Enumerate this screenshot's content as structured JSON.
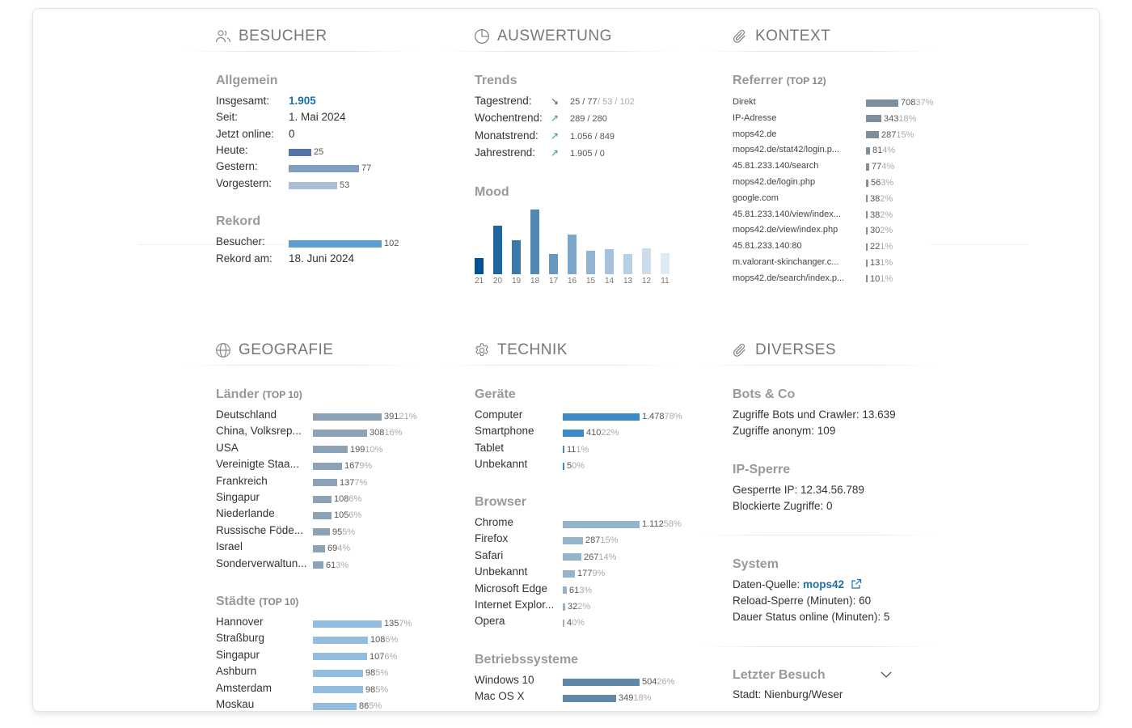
{
  "colors": {
    "accent": "#1e6fa8",
    "trend_up": "#2ea44f",
    "trend_down": "#555555",
    "bar_heute": "#5674a8",
    "bar_gestern": "#7f9fc0",
    "bar_vorgestern": "#a8bfd4",
    "bar_rekord": "#5b9fd4",
    "bar_referrer": "#7d8e9c",
    "bar_laender": "#8ca2b6",
    "bar_staedte": "#93bddf",
    "bar_geraete": "#3d8ac9",
    "bar_browser": "#93b4c9",
    "bar_os": "#5f88a8"
  },
  "besucher": {
    "title": "BESUCHER",
    "icon": "users-icon",
    "allgemein": {
      "title": "Allgemein",
      "insgesamt_label": "Insgesamt:",
      "insgesamt_value": "1.905",
      "seit_label": "Seit:",
      "seit_value": "1. Mai 2024",
      "online_label": "Jetzt online:",
      "online_value": "0",
      "heute_label": "Heute:",
      "heute_value": "25",
      "gestern_label": "Gestern:",
      "gestern_value": "77",
      "vorgestern_label": "Vorgestern:",
      "vorgestern_value": "53"
    },
    "rekord": {
      "title": "Rekord",
      "besucher_label": "Besucher:",
      "besucher_value": "102",
      "am_label": "Rekord am:",
      "am_value": "18. Juni 2024"
    }
  },
  "auswertung": {
    "title": "AUSWERTUNG",
    "icon": "pie-chart-icon",
    "trends": {
      "title": "Trends",
      "items": [
        {
          "label": "Tagestrend:",
          "direction": "down",
          "arrow": "↘",
          "main": "25 / 77",
          "extra": " / 53 / 102"
        },
        {
          "label": "Wochentrend:",
          "direction": "up",
          "arrow": "↗",
          "main": "289 / 280",
          "extra": ""
        },
        {
          "label": "Monatstrend:",
          "direction": "up",
          "arrow": "↗",
          "main": "1.056 / 849",
          "extra": ""
        },
        {
          "label": "Jahrestrend:",
          "direction": "up",
          "arrow": "↗",
          "main": "1.905 / 0",
          "extra": ""
        }
      ]
    },
    "mood": {
      "title": "Mood",
      "bars": [
        {
          "label": "21",
          "value": 25
        },
        {
          "label": "20",
          "value": 77
        },
        {
          "label": "19",
          "value": 53
        },
        {
          "label": "18",
          "value": 102
        },
        {
          "label": "17",
          "value": 32
        },
        {
          "label": "16",
          "value": 63
        },
        {
          "label": "15",
          "value": 37
        },
        {
          "label": "14",
          "value": 40
        },
        {
          "label": "13",
          "value": 32
        },
        {
          "label": "12",
          "value": 41
        },
        {
          "label": "11",
          "value": 33
        }
      ]
    }
  },
  "kontext": {
    "title": "KONTEXT",
    "icon": "paperclip-icon",
    "referrer": {
      "title": "Referrer",
      "top": "(TOP 12)",
      "items": [
        {
          "label": "Direkt",
          "count": "708",
          "pct": "37%",
          "value": 708
        },
        {
          "label": "IP-Adresse",
          "count": "343",
          "pct": "18%",
          "value": 343
        },
        {
          "label": "mops42.de",
          "count": "287",
          "pct": "15%",
          "value": 287
        },
        {
          "label": "mops42.de/stat42/login.p...",
          "count": "81",
          "pct": "4%",
          "value": 81
        },
        {
          "label": "45.81.233.140/search",
          "count": "77",
          "pct": "4%",
          "value": 77
        },
        {
          "label": "mops42.de/login.php",
          "count": "56",
          "pct": "3%",
          "value": 56
        },
        {
          "label": "google.com",
          "count": "38",
          "pct": "2%",
          "value": 38
        },
        {
          "label": "45.81.233.140/view/index...",
          "count": "38",
          "pct": "2%",
          "value": 38
        },
        {
          "label": "mops42.de/view/index.php",
          "count": "30",
          "pct": "2%",
          "value": 30
        },
        {
          "label": "45.81.233.140:80",
          "count": "22",
          "pct": "1%",
          "value": 22
        },
        {
          "label": "m.valorant-skinchanger.c...",
          "count": "13",
          "pct": "1%",
          "value": 13
        },
        {
          "label": "mops42.de/search/index.p...",
          "count": "10",
          "pct": "1%",
          "value": 10
        }
      ]
    }
  },
  "geografie": {
    "title": "GEOGRAFIE",
    "icon": "globe-icon",
    "laender": {
      "title": "Länder",
      "top": "(TOP 10)",
      "items": [
        {
          "label": "Deutschland",
          "count": "391",
          "pct": "21%",
          "value": 391
        },
        {
          "label": "China, Volksrep...",
          "count": "308",
          "pct": "16%",
          "value": 308
        },
        {
          "label": "USA",
          "count": "199",
          "pct": "10%",
          "value": 199
        },
        {
          "label": "Vereinigte Staa...",
          "count": "167",
          "pct": "9%",
          "value": 167
        },
        {
          "label": "Frankreich",
          "count": "137",
          "pct": "7%",
          "value": 137
        },
        {
          "label": "Singapur",
          "count": "108",
          "pct": "6%",
          "value": 108
        },
        {
          "label": "Niederlande",
          "count": "105",
          "pct": "6%",
          "value": 105
        },
        {
          "label": "Russische Föde...",
          "count": "95",
          "pct": "5%",
          "value": 95
        },
        {
          "label": "Israel",
          "count": "69",
          "pct": "4%",
          "value": 69
        },
        {
          "label": "Sonderverwaltun...",
          "count": "61",
          "pct": "3%",
          "value": 61
        }
      ]
    },
    "staedte": {
      "title": "Städte",
      "top": "(TOP 10)",
      "items": [
        {
          "label": "Hannover",
          "count": "135",
          "pct": "7%",
          "value": 135
        },
        {
          "label": "Straßburg",
          "count": "108",
          "pct": "6%",
          "value": 108
        },
        {
          "label": "Singapur",
          "count": "107",
          "pct": "6%",
          "value": 107
        },
        {
          "label": "Ashburn",
          "count": "98",
          "pct": "5%",
          "value": 98
        },
        {
          "label": "Amsterdam",
          "count": "98",
          "pct": "5%",
          "value": 98
        },
        {
          "label": "Moskau",
          "count": "86",
          "pct": "5%",
          "value": 86
        }
      ]
    }
  },
  "technik": {
    "title": "TECHNIK",
    "icon": "gear-icon",
    "geraete": {
      "title": "Geräte",
      "items": [
        {
          "label": "Computer",
          "count": "1.478",
          "pct": "78%",
          "value": 1478
        },
        {
          "label": "Smartphone",
          "count": "410",
          "pct": "22%",
          "value": 410
        },
        {
          "label": "Tablet",
          "count": "11",
          "pct": "1%",
          "value": 11
        },
        {
          "label": "Unbekannt",
          "count": "5",
          "pct": "0%",
          "value": 5
        }
      ]
    },
    "browser": {
      "title": "Browser",
      "items": [
        {
          "label": "Chrome",
          "count": "1.112",
          "pct": "58%",
          "value": 1112
        },
        {
          "label": "Firefox",
          "count": "287",
          "pct": "15%",
          "value": 287
        },
        {
          "label": "Safari",
          "count": "267",
          "pct": "14%",
          "value": 267
        },
        {
          "label": "Unbekannt",
          "count": "177",
          "pct": "9%",
          "value": 177
        },
        {
          "label": "Microsoft Edge",
          "count": "61",
          "pct": "3%",
          "value": 61
        },
        {
          "label": "Internet Explor...",
          "count": "32",
          "pct": "2%",
          "value": 32
        },
        {
          "label": "Opera",
          "count": "4",
          "pct": "0%",
          "value": 4
        }
      ]
    },
    "os": {
      "title": "Betriebssysteme",
      "items": [
        {
          "label": "Windows 10",
          "count": "504",
          "pct": "26%",
          "value": 504
        },
        {
          "label": "Mac OS X",
          "count": "349",
          "pct": "18%",
          "value": 349
        }
      ]
    }
  },
  "diverses": {
    "title": "DIVERSES",
    "icon": "paperclip-icon",
    "bots": {
      "title": "Bots & Co",
      "line1": "Zugriffe Bots und Crawler: 13.639",
      "line2": "Zugriffe anonym: 109"
    },
    "ipsperre": {
      "title": "IP-Sperre",
      "line1": "Gesperrte IP: 12.34.56.789",
      "line2": "Blockierte Zugriffe: 0"
    },
    "system": {
      "title": "System",
      "quelle_label": "Daten-Quelle: ",
      "quelle_link": "mops42",
      "line2": "Reload-Sperre (Minuten): 60",
      "line3": "Dauer Status online (Minuten): 5"
    },
    "letzter": {
      "title": "Letzter Besuch",
      "line1": "Stadt: Nienburg/Weser"
    }
  }
}
